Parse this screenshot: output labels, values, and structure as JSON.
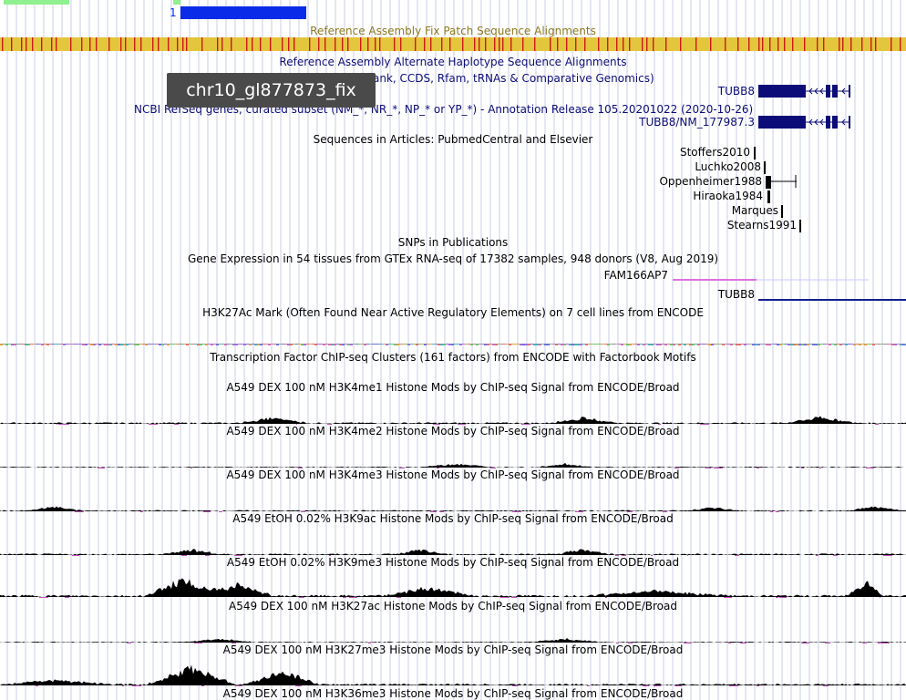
{
  "top_track": {
    "scale_label": "1"
  },
  "fix_patch_title": "Reference Assembly Fix Patch Sequence Alignments",
  "alt_haplotype_title": "Reference Assembly Alternate Haplotype Sequence Alignments",
  "genbank_title_partial": "ank, CCDS, Rfam, tRNAs & Comparative Genomics)",
  "gene_label_1": "TUBB8",
  "refseq_title": "NCBI RefSeq genes, curated subset (NM_*, NR_*, NP_* or YP_*) - Annotation Release 105.20201022 (2020-10-26)",
  "gene_label_2": "TUBB8/NM_177987.3",
  "tooltip": "chr10_gl877873_fix",
  "articles_title": "Sequences in Articles: PubmedCentral and Elsevier",
  "articles": [
    "Stoffers2010",
    "Luchko2008",
    "Oppenheimer1988",
    "Hiraoka1984",
    "Marques",
    "Stearns1991"
  ],
  "snps_title": "SNPs in Publications",
  "gtex_title": "Gene Expression in 54 tissues from GTEx RNA-seq of 17382 samples, 948 donors (V8, Aug 2019)",
  "gtex_gene_1": "FAM166AP7",
  "gtex_gene_2": "TUBB8",
  "h3k27ac_title": "H3K27Ac Mark (Often Found Near Active Regulatory Elements) on 7 cell lines from ENCODE",
  "tfbs_title": "Transcription Factor ChIP-seq Clusters (161 factors) from ENCODE with Factorbook Motifs",
  "histone_tracks": [
    "A549 DEX 100 nM H3K4me1 Histone Mods by ChIP-seq Signal from ENCODE/Broad",
    "A549 DEX 100 nM H3K4me2 Histone Mods by ChIP-seq Signal from ENCODE/Broad",
    "A549 DEX 100 nM H3K4me3 Histone Mods by ChIP-seq Signal from ENCODE/Broad",
    "A549 EtOH 0.02% H3K9ac Histone Mods by ChIP-seq Signal from ENCODE/Broad",
    "A549 EtOH 0.02% H3K9me3 Histone Mods by ChIP-seq Signal from ENCODE/Broad",
    "A549 DEX 100 nM H3K27ac Histone Mods by ChIP-seq Signal from ENCODE/Broad",
    "A549 DEX 100 nM H3K27me3 Histone Mods by ChIP-seq Signal from ENCODE/Broad",
    "A549 DEX 100 nM H3K36me3 Histone Mods by ChIP-seq Signal from ENCODE/Broad"
  ],
  "colors": {
    "blue_bar": "#0a2be8",
    "green_bar": "#8ef08e",
    "fix_patch_bar": "#e3c63c",
    "fix_patch_tick": "#cc1a1a",
    "navy": "#0c0c78",
    "gtex_pink": "#e070e0"
  }
}
